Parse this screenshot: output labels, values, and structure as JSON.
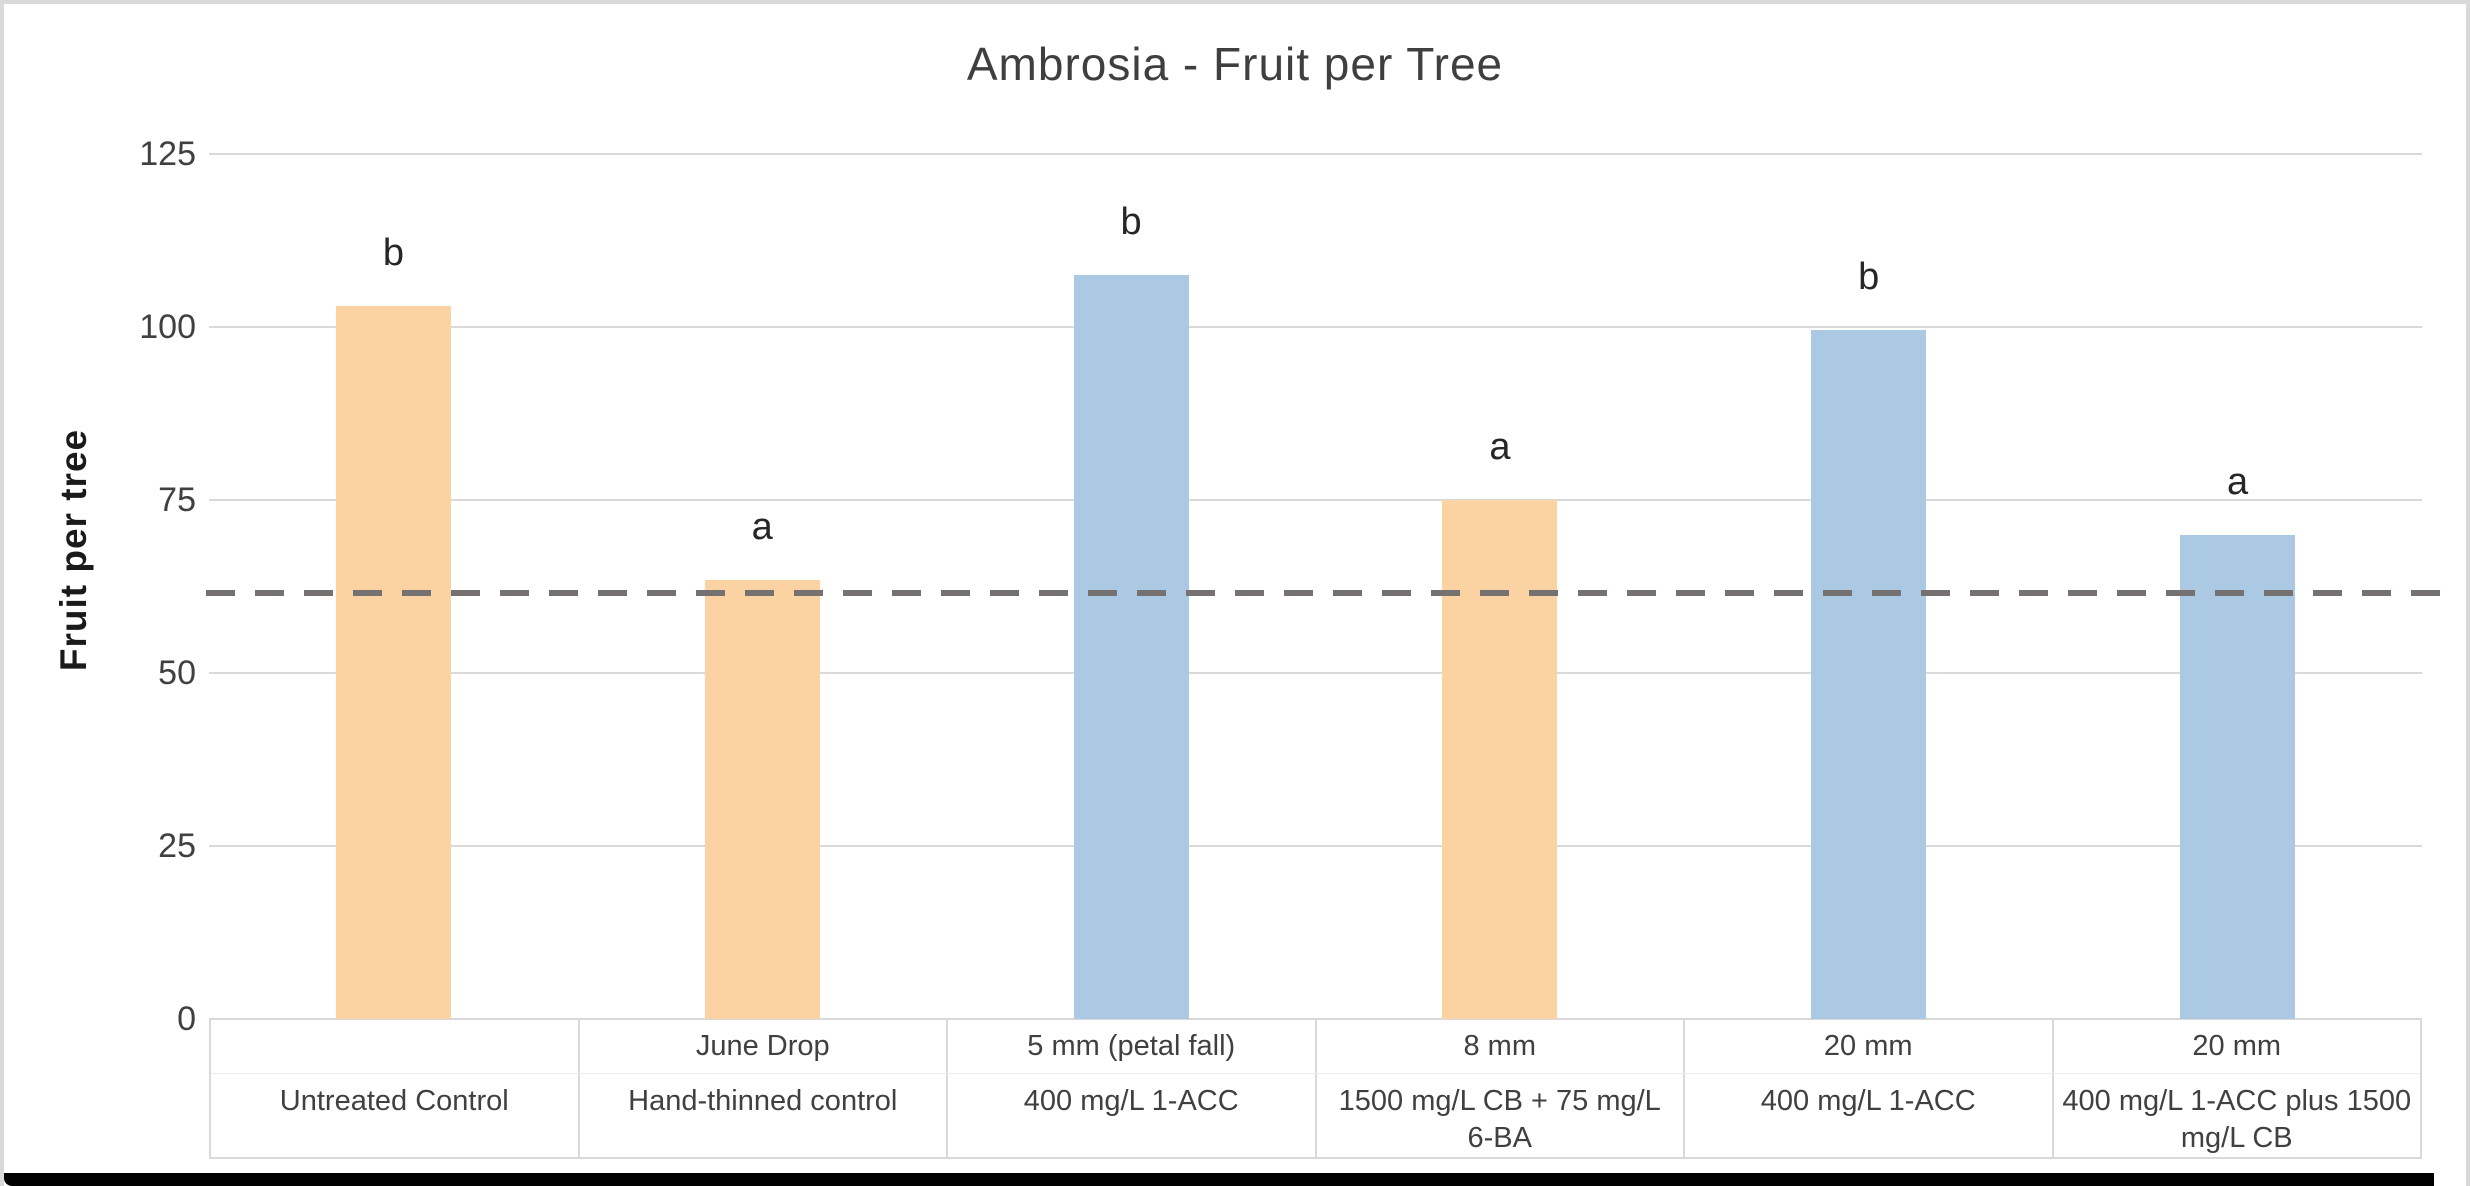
{
  "chart_data": {
    "type": "bar",
    "title": "Ambrosia - Fruit per Tree",
    "ylabel": "Fruit per tree",
    "ylim": [
      0,
      125
    ],
    "yticks": [
      125,
      100,
      75,
      50,
      25,
      0
    ],
    "grid": "horizontal-only",
    "legend": "none",
    "gridline_color": "#d9d9d9",
    "text_color": "#404040",
    "reference_line": {
      "value": 61.5,
      "style": "dashed",
      "color": "#757171"
    },
    "bar_colors": {
      "orange": "#fbd3a3",
      "blue": "#acc9e3"
    },
    "categories": [
      {
        "top": "",
        "bottom": "Untreated Control",
        "value": 103,
        "letter": "b",
        "color": "#fbd3a3"
      },
      {
        "top": "June Drop",
        "bottom": "Hand-thinned control",
        "value": 63.5,
        "letter": "a",
        "color": "#fbd3a3"
      },
      {
        "top": "5 mm (petal fall)",
        "bottom": "400 mg/L 1-ACC",
        "value": 107.5,
        "letter": "b",
        "color": "#acc9e3"
      },
      {
        "top": "8 mm",
        "bottom": "1500 mg/L CB + 75 mg/L 6-BA",
        "value": 75,
        "letter": "a",
        "color": "#fbd3a3"
      },
      {
        "top": "20 mm",
        "bottom": "400 mg/L 1-ACC",
        "value": 99.5,
        "letter": "b",
        "color": "#acc9e3"
      },
      {
        "top": "20 mm",
        "bottom": "400 mg/L 1-ACC plus 1500 mg/L CB",
        "value": 70,
        "letter": "a",
        "color": "#acc9e3"
      }
    ]
  }
}
